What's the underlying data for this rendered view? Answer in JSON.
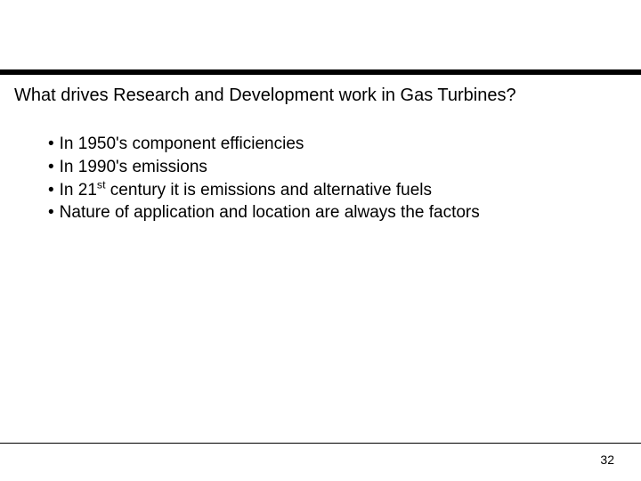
{
  "slide": {
    "title": "What drives Research and Development work in Gas Turbines?",
    "bullets": [
      {
        "marker": "•",
        "text": "In 1950's component efficiencies"
      },
      {
        "marker": "•",
        "text": "In 1990's emissions"
      },
      {
        "marker": "•",
        "pre": "In 21",
        "sup": "st",
        "post": " century it is emissions and alternative fuels"
      },
      {
        "marker": "•",
        "text": "Nature of application and location are always the factors"
      }
    ],
    "page_number": "32",
    "colors": {
      "background": "#ffffff",
      "text": "#000000",
      "rule": "#000000"
    },
    "typography": {
      "title_fontsize": 20,
      "bullet_fontsize": 19,
      "pagenum_fontsize": 14
    }
  }
}
